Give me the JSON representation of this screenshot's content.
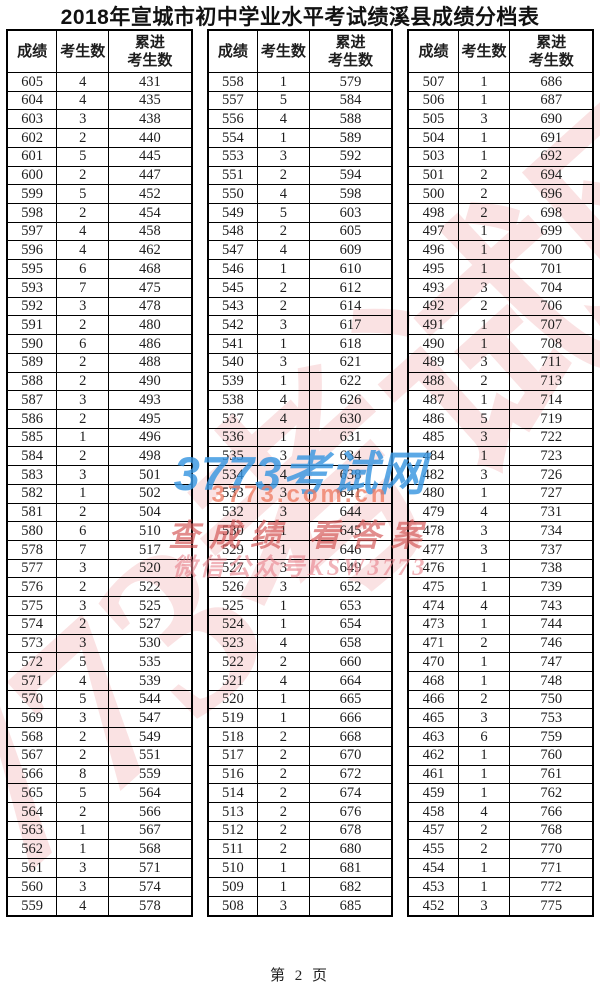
{
  "page": {
    "title": "2018年宣城市初中学业水平考试绩溪县成绩分档表",
    "footer": "第 2 页"
  },
  "table": {
    "columns": [
      "成绩",
      "考生数",
      "累进\n考生数"
    ],
    "groups": [
      {
        "rows": [
          [
            605,
            4,
            431
          ],
          [
            604,
            4,
            435
          ],
          [
            603,
            3,
            438
          ],
          [
            602,
            2,
            440
          ],
          [
            601,
            5,
            445
          ],
          [
            600,
            2,
            447
          ],
          [
            599,
            5,
            452
          ],
          [
            598,
            2,
            454
          ],
          [
            597,
            4,
            458
          ],
          [
            596,
            4,
            462
          ],
          [
            595,
            6,
            468
          ],
          [
            593,
            7,
            475
          ],
          [
            592,
            3,
            478
          ],
          [
            591,
            2,
            480
          ],
          [
            590,
            6,
            486
          ],
          [
            589,
            2,
            488
          ],
          [
            588,
            2,
            490
          ],
          [
            587,
            3,
            493
          ],
          [
            586,
            2,
            495
          ],
          [
            585,
            1,
            496
          ],
          [
            584,
            2,
            498
          ],
          [
            583,
            3,
            501
          ],
          [
            582,
            1,
            502
          ],
          [
            581,
            2,
            504
          ],
          [
            580,
            6,
            510
          ],
          [
            578,
            7,
            517
          ],
          [
            577,
            3,
            520
          ],
          [
            576,
            2,
            522
          ],
          [
            575,
            3,
            525
          ],
          [
            574,
            2,
            527
          ],
          [
            573,
            3,
            530
          ],
          [
            572,
            5,
            535
          ],
          [
            571,
            4,
            539
          ],
          [
            570,
            5,
            544
          ],
          [
            569,
            3,
            547
          ],
          [
            568,
            2,
            549
          ],
          [
            567,
            2,
            551
          ],
          [
            566,
            8,
            559
          ],
          [
            565,
            5,
            564
          ],
          [
            564,
            2,
            566
          ],
          [
            563,
            1,
            567
          ],
          [
            562,
            1,
            568
          ],
          [
            561,
            3,
            571
          ],
          [
            560,
            3,
            574
          ],
          [
            559,
            4,
            578
          ]
        ]
      },
      {
        "rows": [
          [
            558,
            1,
            579
          ],
          [
            557,
            5,
            584
          ],
          [
            556,
            4,
            588
          ],
          [
            554,
            1,
            589
          ],
          [
            553,
            3,
            592
          ],
          [
            551,
            2,
            594
          ],
          [
            550,
            4,
            598
          ],
          [
            549,
            5,
            603
          ],
          [
            548,
            2,
            605
          ],
          [
            547,
            4,
            609
          ],
          [
            546,
            1,
            610
          ],
          [
            545,
            2,
            612
          ],
          [
            543,
            2,
            614
          ],
          [
            542,
            3,
            617
          ],
          [
            541,
            1,
            618
          ],
          [
            540,
            3,
            621
          ],
          [
            539,
            1,
            622
          ],
          [
            538,
            4,
            626
          ],
          [
            537,
            4,
            630
          ],
          [
            536,
            1,
            631
          ],
          [
            535,
            3,
            634
          ],
          [
            534,
            4,
            638
          ],
          [
            533,
            3,
            641
          ],
          [
            532,
            3,
            644
          ],
          [
            530,
            1,
            645
          ],
          [
            529,
            1,
            646
          ],
          [
            527,
            3,
            649
          ],
          [
            526,
            3,
            652
          ],
          [
            525,
            1,
            653
          ],
          [
            524,
            1,
            654
          ],
          [
            523,
            4,
            658
          ],
          [
            522,
            2,
            660
          ],
          [
            521,
            4,
            664
          ],
          [
            520,
            1,
            665
          ],
          [
            519,
            1,
            666
          ],
          [
            518,
            2,
            668
          ],
          [
            517,
            2,
            670
          ],
          [
            516,
            2,
            672
          ],
          [
            514,
            2,
            674
          ],
          [
            513,
            2,
            676
          ],
          [
            512,
            2,
            678
          ],
          [
            511,
            2,
            680
          ],
          [
            510,
            1,
            681
          ],
          [
            509,
            1,
            682
          ],
          [
            508,
            3,
            685
          ]
        ]
      },
      {
        "rows": [
          [
            507,
            1,
            686
          ],
          [
            506,
            1,
            687
          ],
          [
            505,
            3,
            690
          ],
          [
            504,
            1,
            691
          ],
          [
            503,
            1,
            692
          ],
          [
            501,
            2,
            694
          ],
          [
            500,
            2,
            696
          ],
          [
            498,
            2,
            698
          ],
          [
            497,
            1,
            699
          ],
          [
            496,
            1,
            700
          ],
          [
            495,
            1,
            701
          ],
          [
            493,
            3,
            704
          ],
          [
            492,
            2,
            706
          ],
          [
            491,
            1,
            707
          ],
          [
            490,
            1,
            708
          ],
          [
            489,
            3,
            711
          ],
          [
            488,
            2,
            713
          ],
          [
            487,
            1,
            714
          ],
          [
            486,
            5,
            719
          ],
          [
            485,
            3,
            722
          ],
          [
            484,
            1,
            723
          ],
          [
            482,
            3,
            726
          ],
          [
            480,
            1,
            727
          ],
          [
            479,
            4,
            731
          ],
          [
            478,
            3,
            734
          ],
          [
            477,
            3,
            737
          ],
          [
            476,
            1,
            738
          ],
          [
            475,
            1,
            739
          ],
          [
            474,
            4,
            743
          ],
          [
            473,
            1,
            744
          ],
          [
            471,
            2,
            746
          ],
          [
            470,
            1,
            747
          ],
          [
            468,
            1,
            748
          ],
          [
            466,
            2,
            750
          ],
          [
            465,
            3,
            753
          ],
          [
            463,
            6,
            759
          ],
          [
            462,
            1,
            760
          ],
          [
            461,
            1,
            761
          ],
          [
            459,
            1,
            762
          ],
          [
            458,
            4,
            766
          ],
          [
            457,
            2,
            768
          ],
          [
            455,
            2,
            770
          ],
          [
            454,
            1,
            771
          ],
          [
            453,
            1,
            772
          ],
          [
            452,
            3,
            775
          ]
        ]
      }
    ]
  },
  "watermark": {
    "stamp_text": "3773考试网",
    "site_name": "3773考试网",
    "site_url": "3773.com.cn",
    "slogan": "查成绩 看答案",
    "wechat": "微信公众号KSW3773",
    "colors": {
      "blue": "#389 6e0",
      "orange": "#ee785f",
      "red": "#d25050",
      "pink": "#f2bbbd"
    }
  }
}
